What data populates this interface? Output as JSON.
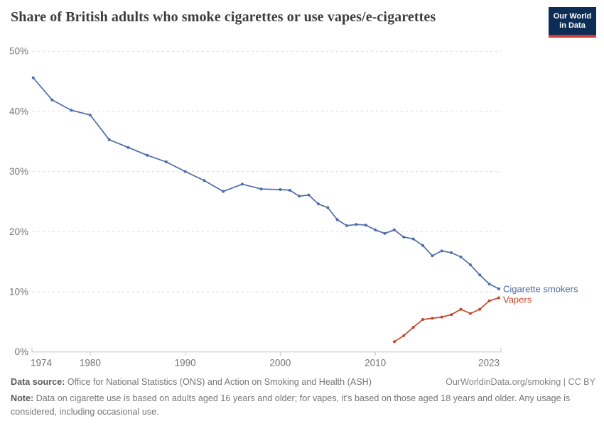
{
  "header": {
    "title": "Share of British adults who smoke cigarettes or use vapes/e-cigarettes",
    "logo": {
      "line1": "Our World",
      "line2": "in Data",
      "bg_color": "#0e2d56",
      "accent_color": "#d63b33"
    }
  },
  "chart_data": {
    "type": "line",
    "title": "Share of British adults who smoke cigarettes or use vapes/e-cigarettes",
    "xlabel": "",
    "ylabel": "",
    "xlim": [
      1974,
      2023
    ],
    "ylim": [
      0,
      50
    ],
    "x_ticks": [
      1974,
      1980,
      1990,
      2000,
      2010,
      2023
    ],
    "y_ticks": [
      0,
      10,
      20,
      30,
      40,
      50
    ],
    "y_tick_suffix": "%",
    "grid": "horizontal-dashed",
    "legend_position": "end-of-line-labels",
    "colors": {
      "grid": "#dcdcdc",
      "axis": "#c2c2c2",
      "tick_labels": "#737373"
    },
    "series": [
      {
        "name": "Cigarette smokers",
        "color": "#4E6CA8",
        "x": [
          1974,
          1976,
          1978,
          1980,
          1982,
          1984,
          1986,
          1988,
          1990,
          1992,
          1994,
          1996,
          1998,
          2000,
          2001,
          2002,
          2003,
          2004,
          2005,
          2006,
          2007,
          2008,
          2009,
          2010,
          2011,
          2012,
          2013,
          2014,
          2015,
          2016,
          2017,
          2018,
          2019,
          2020,
          2021,
          2022,
          2023
        ],
        "values": [
          45.6,
          41.9,
          40.2,
          39.4,
          35.3,
          34.0,
          32.7,
          31.6,
          30.0,
          28.5,
          26.7,
          27.9,
          27.1,
          27.0,
          26.9,
          25.9,
          26.1,
          24.6,
          24.0,
          22.0,
          21.0,
          21.2,
          21.1,
          20.3,
          19.7,
          20.3,
          19.1,
          18.8,
          17.7,
          16.0,
          16.8,
          16.5,
          15.8,
          14.5,
          12.8,
          11.3,
          10.5
        ]
      },
      {
        "name": "Vapers",
        "color": "#BF4728",
        "x": [
          2012,
          2013,
          2014,
          2015,
          2016,
          2017,
          2018,
          2019,
          2020,
          2021,
          2022,
          2023
        ],
        "values": [
          1.7,
          2.7,
          4.1,
          5.4,
          5.6,
          5.8,
          6.2,
          7.1,
          6.4,
          7.1,
          8.5,
          9.0
        ]
      }
    ]
  },
  "footer": {
    "datasource_label": "Data source:",
    "datasource_text": " Office for National Statistics (ONS) and Action on Smoking and Health (ASH)",
    "attribution": "OurWorldinData.org/smoking | CC BY",
    "note_label": "Note:",
    "note_text": " Data on cigarette use is based on adults aged 16 years and older; for vapes, it's based on those aged 18 years and older. Any usage is considered, including occasional use."
  }
}
